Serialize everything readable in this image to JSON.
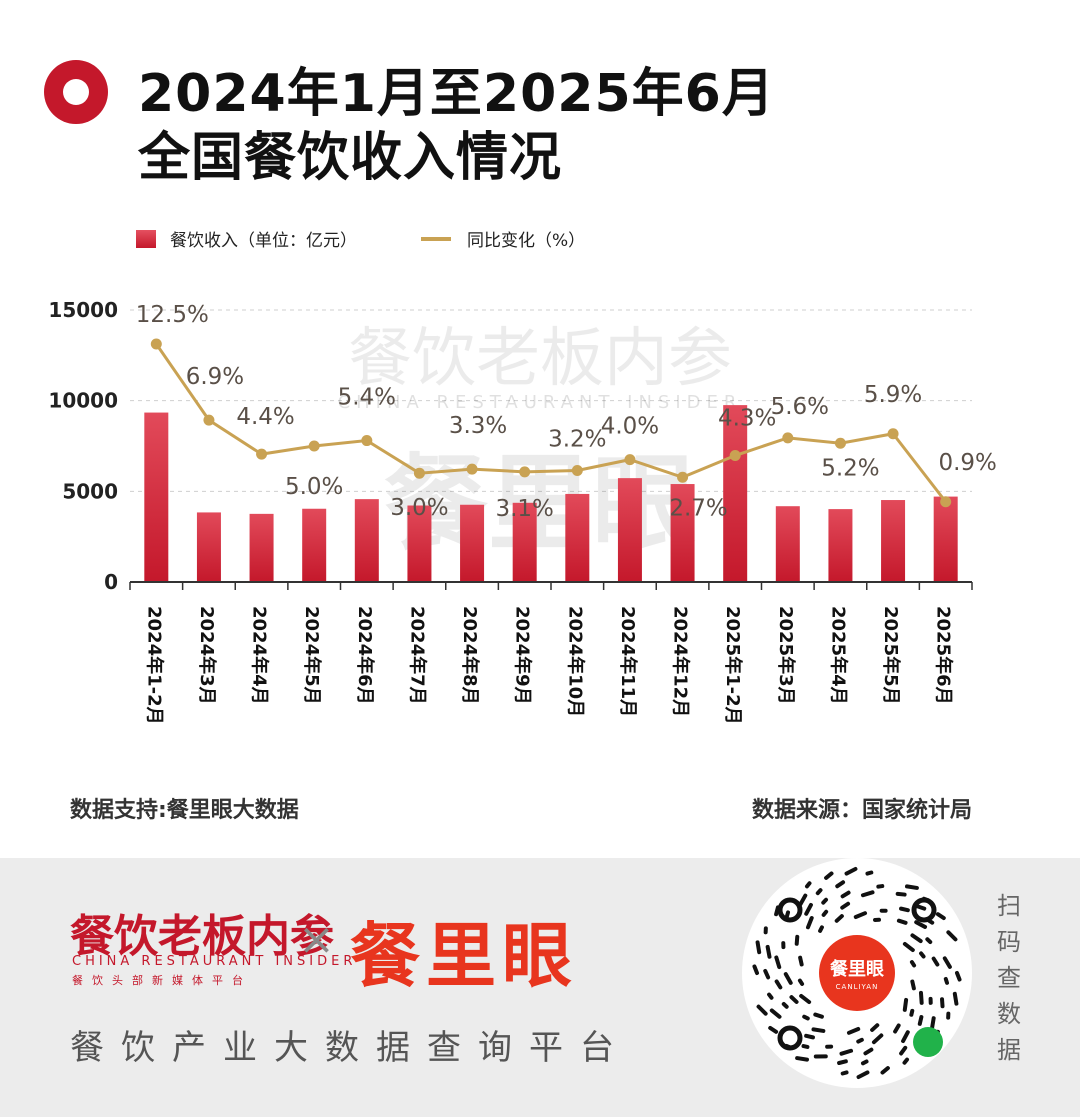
{
  "header": {
    "title_line1": "2024年1月至2025年6月",
    "title_line2": "全国餐饮收入情况"
  },
  "legend": {
    "bar_label": "餐饮收入（单位：亿元）",
    "line_label": "同比变化（%）"
  },
  "colors": {
    "bar": "#c4182b",
    "line": "#c9a253",
    "accent": "#c4182b",
    "brand_orange": "#e8351e"
  },
  "watermark": {
    "top": "餐饮老板内参",
    "middle": "CHINA RESTAURANT INSIDER",
    "bottom": "餐里眼"
  },
  "chart_data": {
    "type": "bar",
    "title": "全国餐饮收入情况",
    "categories": [
      "2024年1-2月",
      "2024年3月",
      "2024年4月",
      "2024年5月",
      "2024年6月",
      "2024年7月",
      "2024年8月",
      "2024年9月",
      "2024年10月",
      "2024年11月",
      "2024年12月",
      "2025年1-2月",
      "2025年3月",
      "2025年4月",
      "2025年5月",
      "2025年6月"
    ],
    "series": [
      {
        "name": "餐饮收入（单位：亿元）",
        "type": "bar",
        "values": [
          9344,
          3837,
          3758,
          4040,
          4570,
          4219,
          4260,
          4368,
          4857,
          5728,
          5402,
          9755,
          4180,
          4020,
          4520,
          4710
        ]
      },
      {
        "name": "同比变化（%）",
        "type": "line",
        "values": [
          12.5,
          6.9,
          4.4,
          5.0,
          5.4,
          3.0,
          3.3,
          3.1,
          3.2,
          4.0,
          2.7,
          4.3,
          5.6,
          5.2,
          5.9,
          0.9
        ],
        "labels": [
          "12.5%",
          "6.9%",
          "4.4%",
          "5.0%",
          "5.4%",
          "3.0%",
          "3.3%",
          "3.1%",
          "3.2%",
          "4.0%",
          "2.7%",
          "4.3%",
          "5.6%",
          "5.2%",
          "5.9%",
          "0.9%"
        ]
      }
    ],
    "y_ticks": [
      "15000",
      "10000",
      "5000",
      "0"
    ],
    "ylim": [
      0,
      15000
    ],
    "line_ylim": [
      -5,
      15
    ],
    "grid": true
  },
  "footer": {
    "data_support": "数据支持:餐里眼大数据",
    "data_source": "数据来源：国家统计局"
  },
  "bottom": {
    "brand1": "餐饮老板内参",
    "brand1_sub": "CHINA RESTAURANT INSIDER",
    "brand1_tag": "餐饮头部新媒体平台",
    "cross": "×",
    "brand2": "餐里眼",
    "tagline": "餐饮产业大数据查询平台",
    "qr_center_cn": "餐里眼",
    "qr_center_en": "CANLIYAN",
    "scan_text": "扫码查数据"
  }
}
